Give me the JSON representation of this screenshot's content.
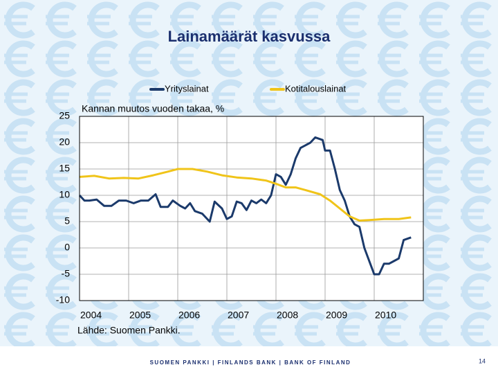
{
  "chart_data": {
    "type": "line",
    "title": "Lainamäärät kasvussa",
    "annotation": "Kannan muutos vuoden takaa, %",
    "source": "Lähde: Suomen Pankki.",
    "footer": "SUOMEN PANKKI | FINLANDS BANK | BANK OF FINLAND",
    "page_number": "14",
    "xlim": [
      2004,
      2011
    ],
    "xticks": [
      2004,
      2005,
      2006,
      2007,
      2008,
      2009,
      2010
    ],
    "ylim": [
      -10,
      25
    ],
    "yticks": [
      -10,
      -5,
      0,
      5,
      10,
      15,
      20,
      25
    ],
    "grid": true,
    "series": [
      {
        "name": "Yrityslainat",
        "color": "#1b3a6b",
        "x": [
          2004.0,
          2004.1,
          2004.2,
          2004.35,
          2004.5,
          2004.65,
          2004.8,
          2004.95,
          2005.1,
          2005.25,
          2005.4,
          2005.55,
          2005.65,
          2005.8,
          2005.9,
          2006.05,
          2006.15,
          2006.25,
          2006.35,
          2006.5,
          2006.65,
          2006.75,
          2006.9,
          2007.0,
          2007.1,
          2007.2,
          2007.3,
          2007.4,
          2007.5,
          2007.6,
          2007.7,
          2007.8,
          2007.9,
          2008.0,
          2008.1,
          2008.2,
          2008.3,
          2008.4,
          2008.5,
          2008.6,
          2008.7,
          2008.8,
          2008.95,
          2009.0,
          2009.1,
          2009.2,
          2009.3,
          2009.4,
          2009.5,
          2009.6,
          2009.7,
          2009.8,
          2009.9,
          2010.0,
          2010.1,
          2010.2,
          2010.3,
          2010.4,
          2010.5,
          2010.6,
          2010.75
        ],
        "values": [
          10,
          9,
          9,
          9.2,
          8,
          8,
          9,
          9,
          8.5,
          9,
          9,
          10.2,
          7.8,
          7.8,
          9,
          8,
          7.5,
          8.5,
          7,
          6.5,
          5,
          8.8,
          7.5,
          5.5,
          6,
          8.8,
          8.5,
          7.2,
          9,
          8.5,
          9.2,
          8.5,
          10,
          14,
          13.5,
          12,
          14,
          17,
          19,
          19.5,
          20,
          21,
          20.5,
          18.5,
          18.5,
          15,
          11,
          9,
          6,
          4.5,
          4,
          0,
          -2.5,
          -5,
          -5,
          -3,
          -3,
          -2.5,
          -2,
          1.5,
          2
        ]
      },
      {
        "name": "Kotitalouslainat",
        "color": "#f0c419",
        "x": [
          2004.0,
          2004.3,
          2004.6,
          2004.9,
          2005.2,
          2005.5,
          2005.8,
          2006.0,
          2006.3,
          2006.6,
          2006.9,
          2007.2,
          2007.5,
          2007.8,
          2008.0,
          2008.2,
          2008.4,
          2008.6,
          2008.9,
          2009.1,
          2009.3,
          2009.5,
          2009.7,
          2009.9,
          2010.2,
          2010.5,
          2010.75
        ],
        "values": [
          13.5,
          13.7,
          13.2,
          13.3,
          13.2,
          13.8,
          14.5,
          15,
          15,
          14.5,
          13.8,
          13.4,
          13.2,
          12.8,
          12.2,
          11.5,
          11.5,
          11,
          10.2,
          9,
          7.5,
          6,
          5.2,
          5.3,
          5.5,
          5.5,
          5.8
        ]
      }
    ]
  }
}
